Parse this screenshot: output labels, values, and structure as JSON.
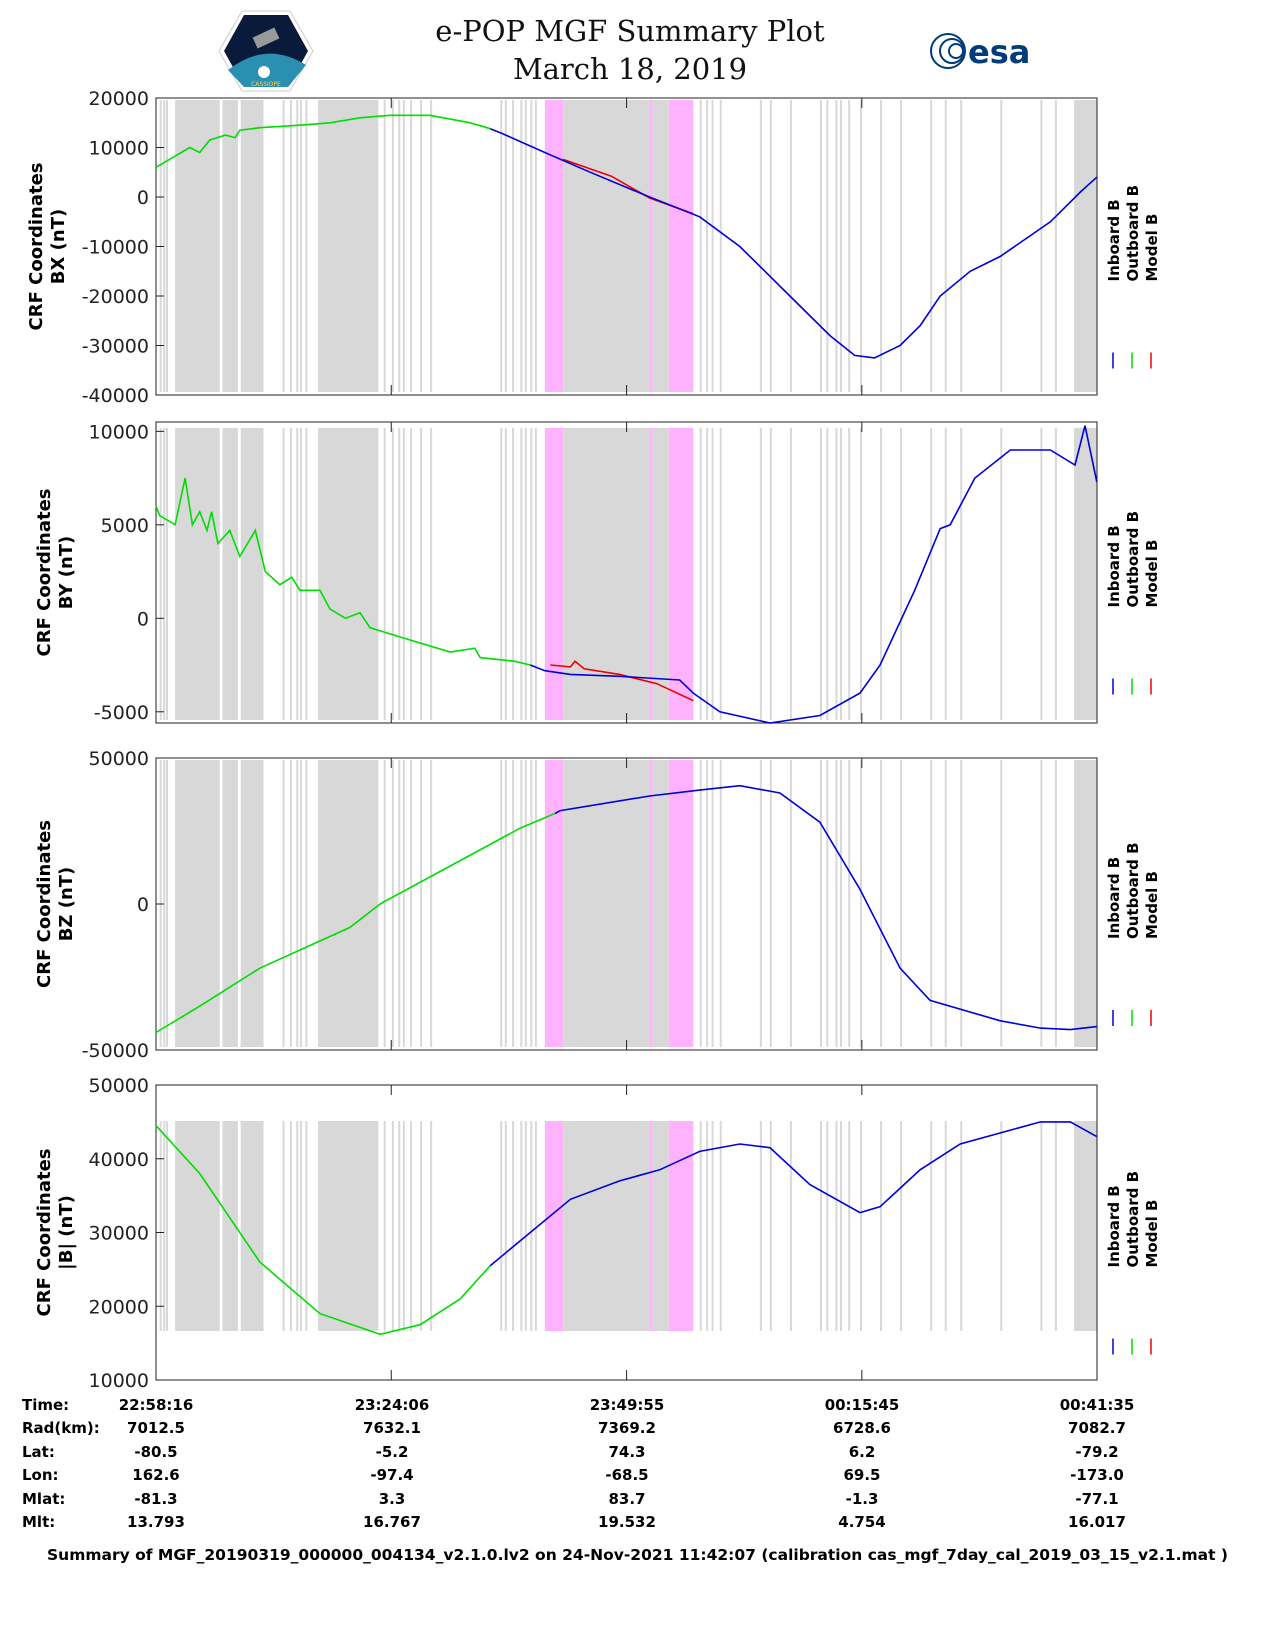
{
  "header": {
    "title": "e-POP MGF Summary Plot",
    "date": "March 18, 2019",
    "logo_left_text": "CASSIOPE",
    "logo_right_text": "esa"
  },
  "colors": {
    "inboard": "#0000dd",
    "outboard": "#00dd00",
    "model": "#ee0000",
    "shade_gray": "#d8d8d8",
    "shade_magenta": "#ffb3ff"
  },
  "legend": [
    "Inboard B",
    "Outboard B",
    "Model B"
  ],
  "chart_data": [
    {
      "type": "line",
      "ylabel": [
        "CRF Coordinates",
        "BX (nT)"
      ],
      "ylim": [
        -40000,
        20000
      ],
      "yticks": [
        20000,
        10000,
        0,
        -10000,
        -20000,
        -30000,
        -40000
      ],
      "xlim": [
        0,
        103.32
      ],
      "xunit": "minutes since 22:58:16",
      "outboard_until": 36.7,
      "points": [
        [
          0,
          6000
        ],
        [
          3.7,
          10000
        ],
        [
          4.8,
          9000
        ],
        [
          5.9,
          11500
        ],
        [
          7.6,
          12500
        ],
        [
          8.7,
          12000
        ],
        [
          9.2,
          13500
        ],
        [
          11.4,
          14000
        ],
        [
          15.8,
          14500
        ],
        [
          19.1,
          15000
        ],
        [
          22.4,
          16000
        ],
        [
          25.7,
          16500
        ],
        [
          30.1,
          16500
        ],
        [
          34.5,
          15000
        ],
        [
          36.7,
          13800
        ],
        [
          37.8,
          13000
        ],
        [
          42.7,
          9000
        ],
        [
          47.7,
          5000
        ],
        [
          54.2,
          0
        ],
        [
          59.7,
          -4000
        ],
        [
          64.1,
          -10000
        ],
        [
          69.6,
          -20000
        ],
        [
          74.0,
          -28000
        ],
        [
          76.7,
          -32000
        ],
        [
          78.9,
          -32500
        ],
        [
          81.7,
          -30000
        ],
        [
          83.9,
          -26000
        ],
        [
          86.1,
          -20000
        ],
        [
          89.4,
          -15000
        ],
        [
          92.7,
          -12000
        ],
        [
          98.2,
          -5000
        ],
        [
          101.5,
          1000
        ],
        [
          103.3,
          4000
        ]
      ],
      "model": [
        [
          44.7,
          7600
        ],
        [
          50,
          4200
        ],
        [
          54.2,
          -200
        ],
        [
          59,
          -3400
        ]
      ]
    },
    {
      "type": "line",
      "ylabel": [
        "CRF Coordinates",
        "BY (nT)"
      ],
      "ylim": [
        -5600,
        10500
      ],
      "yticks": [
        10000,
        5000,
        0,
        -5000
      ],
      "xlim": [
        0,
        103.32
      ],
      "outboard_until": 41.1,
      "points": [
        [
          0,
          6000
        ],
        [
          0.4,
          5500
        ],
        [
          2.1,
          5000
        ],
        [
          3.2,
          7500
        ],
        [
          4.0,
          5000
        ],
        [
          4.8,
          5700
        ],
        [
          5.6,
          4700
        ],
        [
          6.1,
          5700
        ],
        [
          6.8,
          4000
        ],
        [
          8.1,
          4700
        ],
        [
          9.2,
          3300
        ],
        [
          10.9,
          4700
        ],
        [
          12.0,
          2500
        ],
        [
          13.6,
          1800
        ],
        [
          14.9,
          2200
        ],
        [
          15.8,
          1500
        ],
        [
          18.0,
          1500
        ],
        [
          19.1,
          500
        ],
        [
          20.8,
          0
        ],
        [
          22.4,
          300
        ],
        [
          23.5,
          -500
        ],
        [
          26.8,
          -1000
        ],
        [
          32.3,
          -1800
        ],
        [
          35.0,
          -1600
        ],
        [
          35.6,
          -2100
        ],
        [
          39.4,
          -2300
        ],
        [
          41.1,
          -2500
        ],
        [
          42.7,
          -2800
        ],
        [
          45.5,
          -3000
        ],
        [
          50.9,
          -3100
        ],
        [
          57.5,
          -3300
        ],
        [
          59.0,
          -4000
        ],
        [
          61.9,
          -5000
        ],
        [
          67.4,
          -5600
        ],
        [
          72.9,
          -5200
        ],
        [
          77.3,
          -4000
        ],
        [
          79.5,
          -2500
        ],
        [
          83.3,
          1500
        ],
        [
          86.1,
          4800
        ],
        [
          87.2,
          5000
        ],
        [
          89.9,
          7500
        ],
        [
          93.8,
          9000
        ],
        [
          98.2,
          9000
        ],
        [
          100.9,
          8200
        ],
        [
          102.0,
          10300
        ],
        [
          103.3,
          7300
        ]
      ],
      "model": [
        [
          43.3,
          -2500
        ],
        [
          45.5,
          -2600
        ],
        [
          46,
          -2300
        ],
        [
          47,
          -2700
        ],
        [
          50.9,
          -3000
        ],
        [
          55,
          -3500
        ],
        [
          59,
          -4400
        ]
      ]
    },
    {
      "type": "line",
      "ylabel": [
        "CRF Coordinates",
        "BZ (nT)"
      ],
      "ylim": [
        -50000,
        50000
      ],
      "yticks": [
        50000,
        0,
        -50000
      ],
      "xlim": [
        0,
        103.32
      ],
      "outboard_until": 43.8,
      "points": [
        [
          0,
          -44000
        ],
        [
          4.8,
          -35000
        ],
        [
          11.4,
          -22000
        ],
        [
          21.3,
          -8000
        ],
        [
          24.6,
          0
        ],
        [
          32.3,
          13000
        ],
        [
          40.0,
          26000
        ],
        [
          43.8,
          31000
        ],
        [
          44.4,
          32000
        ],
        [
          54.2,
          37000
        ],
        [
          59.7,
          39000
        ],
        [
          64.1,
          40500
        ],
        [
          68.5,
          38000
        ],
        [
          72.9,
          28000
        ],
        [
          77.3,
          5000
        ],
        [
          81.7,
          -22000
        ],
        [
          85.0,
          -33000
        ],
        [
          92.7,
          -40000
        ],
        [
          97.1,
          -42500
        ],
        [
          100.4,
          -43000
        ],
        [
          103.3,
          -42000
        ]
      ],
      "model": []
    },
    {
      "type": "line",
      "ylabel": [
        "CRF Coordinates",
        "|B| (nT)"
      ],
      "ylim": [
        10000,
        50000
      ],
      "yticks": [
        50000,
        40000,
        30000,
        20000,
        10000
      ],
      "xlim": [
        0,
        103.32
      ],
      "outboard_until": 36.7,
      "points": [
        [
          0,
          44500
        ],
        [
          4.8,
          38000
        ],
        [
          11.4,
          26000
        ],
        [
          18.0,
          19000
        ],
        [
          24.6,
          16200
        ],
        [
          29.0,
          17500
        ],
        [
          33.4,
          21000
        ],
        [
          36.7,
          25500
        ],
        [
          41.1,
          30000
        ],
        [
          45.5,
          34500
        ],
        [
          50.9,
          37000
        ],
        [
          55.3,
          38500
        ],
        [
          59.7,
          41000
        ],
        [
          64.1,
          42000
        ],
        [
          67.4,
          41500
        ],
        [
          71.8,
          36500
        ],
        [
          77.3,
          32700
        ],
        [
          79.5,
          33500
        ],
        [
          83.9,
          38500
        ],
        [
          88.3,
          42000
        ],
        [
          97.1,
          45000
        ],
        [
          100.4,
          45000
        ],
        [
          103.3,
          43000
        ]
      ],
      "model": []
    }
  ],
  "shading": {
    "gray_blocks": [
      [
        2.1,
        7.0
      ],
      [
        7.3,
        9.0
      ],
      [
        9.3,
        11.8
      ],
      [
        17.8,
        24.4
      ],
      [
        44.7,
        54.2
      ],
      [
        54.5,
        56.3
      ],
      [
        100.8,
        103.3
      ]
    ],
    "gray_lines": [
      0.4,
      0.8,
      1.1,
      13.9,
      14.7,
      15.4,
      15.8,
      16.4,
      25.0,
      25.9,
      26.6,
      27.1,
      27.9,
      29.0,
      30.1,
      37.8,
      38.3,
      39.1,
      40.0,
      40.5,
      41.1,
      41.6,
      48.8,
      50.1,
      59.7,
      60.4,
      61.0,
      61.9,
      66.3,
      67.4,
      69.6,
      72.9,
      73.6,
      74.6,
      75.1,
      76.0,
      77.3,
      79.5,
      81.7,
      85.0,
      86.6,
      88.3,
      92.7,
      97.1,
      98.7
    ],
    "magenta_blocks": [
      [
        42.7,
        44.7
      ],
      [
        54.2,
        54.5
      ],
      [
        56.3,
        59.0
      ]
    ]
  },
  "table": {
    "row_labels": [
      "Time:",
      "Rad(km):",
      "Lat:",
      "Lon:",
      "Mlat:",
      "Mlt:"
    ],
    "columns": [
      [
        "22:58:16",
        "7012.5",
        "-80.5",
        "162.6",
        "-81.3",
        "13.793"
      ],
      [
        "23:24:06",
        "7632.1",
        "-5.2",
        "-97.4",
        "3.3",
        "16.767"
      ],
      [
        "23:49:55",
        "7369.2",
        "74.3",
        "-68.5",
        "83.7",
        "19.532"
      ],
      [
        "00:15:45",
        "6728.6",
        "6.2",
        "69.5",
        "-1.3",
        "4.754"
      ],
      [
        "00:41:35",
        "7082.7",
        "-79.2",
        "-173.0",
        "-77.1",
        "16.017"
      ]
    ]
  },
  "footer": "Summary of MGF_20190319_000000_004134_v2.1.0.lv2 on 24-Nov-2021 11:42:07 (calibration cas_mgf_7day_cal_2019_03_15_v2.1.mat )"
}
